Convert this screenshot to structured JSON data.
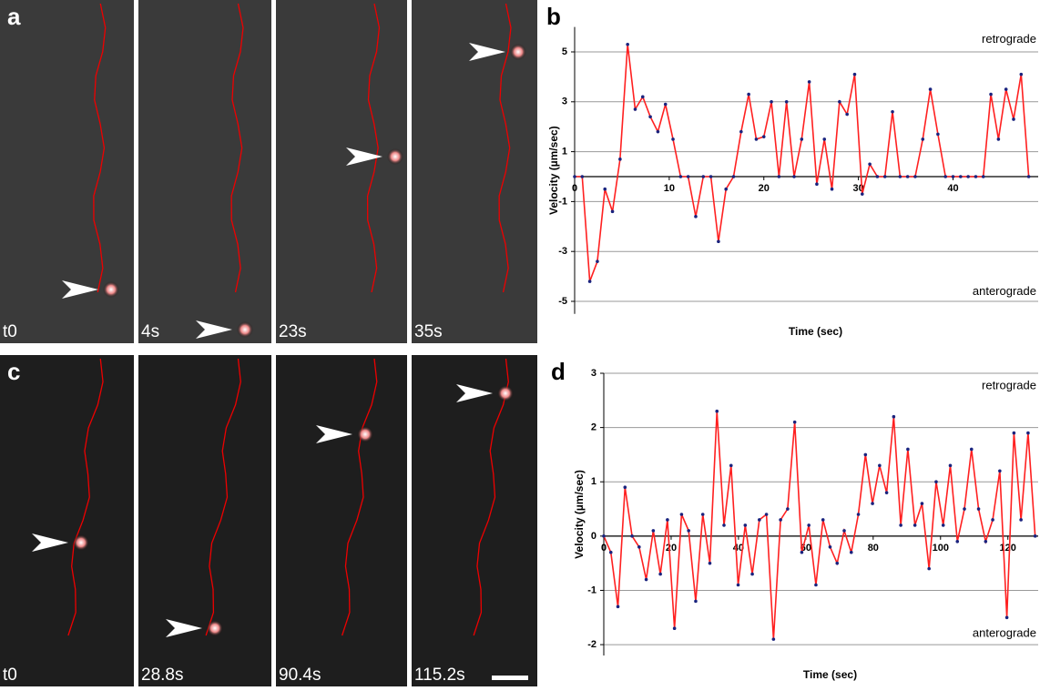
{
  "image_panels": [
    {
      "label": "a",
      "frames": [
        "t0",
        "4s",
        "23s",
        "35s"
      ]
    },
    {
      "label": "c",
      "frames": [
        "t0",
        "28.8s",
        "90.4s",
        "115.2s"
      ]
    }
  ],
  "chart_data": [
    {
      "type": "line",
      "label": "b",
      "xlabel": "Time (sec)",
      "ylabel": "Velocity (µm/sec)",
      "annotations": [
        "retrograde",
        "anterograde"
      ],
      "x": [
        0,
        0.8,
        1.6,
        2.4,
        3.2,
        4,
        4.8,
        5.6,
        6.4,
        7.2,
        8,
        8.8,
        9.6,
        10.4,
        11.2,
        12,
        12.8,
        13.6,
        14.4,
        15.2,
        16,
        16.8,
        17.6,
        18.4,
        19.2,
        20,
        20.8,
        21.6,
        22.4,
        23.2,
        24,
        24.8,
        25.6,
        26.4,
        27.2,
        28,
        28.8,
        29.6,
        30.4,
        31.2,
        32,
        32.8,
        33.6,
        34.4,
        35.2,
        36,
        36.8,
        37.6,
        38.4,
        39.2,
        40,
        40.8,
        41.6,
        42.4,
        43.2,
        44,
        44.8,
        45.6,
        46.4,
        47.2,
        48
      ],
      "series": [
        {
          "color": "#ff2020",
          "marker_color": "#1a237e",
          "values": [
            0,
            0,
            -4.2,
            -3.4,
            -0.5,
            -1.4,
            0.7,
            5.3,
            2.7,
            3.2,
            2.4,
            1.8,
            2.9,
            1.5,
            0,
            0,
            -1.6,
            0,
            0,
            -2.6,
            -0.5,
            0,
            1.8,
            3.3,
            1.5,
            1.6,
            3,
            0,
            3,
            0,
            1.5,
            3.8,
            -0.3,
            1.5,
            -0.5,
            3,
            2.5,
            4.1,
            -0.7,
            0.5,
            0,
            0,
            2.6,
            0,
            0,
            0,
            1.5,
            3.5,
            1.7,
            0,
            0,
            0,
            0,
            0,
            0,
            3.3,
            1.5,
            3.5,
            2.3,
            4.1,
            0
          ]
        }
      ],
      "xlim": [
        0,
        49
      ],
      "ylim": [
        -5.5,
        6
      ],
      "xticks": [
        0,
        10,
        20,
        30,
        40
      ],
      "yticks": [
        -5,
        -3,
        -1,
        1,
        3,
        5
      ],
      "grid": true
    },
    {
      "type": "line",
      "label": "d",
      "xlabel": "Time (sec)",
      "ylabel": "Velocity (µm/sec)",
      "annotations": [
        "retrograde",
        "anterograde"
      ],
      "x": [
        0,
        2.1,
        4.2,
        6.3,
        8.4,
        10.5,
        12.6,
        14.7,
        16.8,
        18.9,
        21,
        23.1,
        25.2,
        27.3,
        29.4,
        31.5,
        33.6,
        35.7,
        37.8,
        39.9,
        42,
        44.1,
        46.2,
        48.3,
        50.4,
        52.5,
        54.6,
        56.7,
        58.8,
        60.9,
        63,
        65.1,
        67.2,
        69.3,
        71.4,
        73.5,
        75.6,
        77.7,
        79.8,
        81.9,
        84,
        86.1,
        88.2,
        90.3,
        92.4,
        94.5,
        96.6,
        98.7,
        100.8,
        102.9,
        105,
        107.1,
        109.2,
        111.3,
        113.4,
        115.5,
        117.6,
        119.7,
        121.8,
        123.9,
        126,
        128.1
      ],
      "series": [
        {
          "color": "#ff2020",
          "marker_color": "#1a237e",
          "values": [
            0,
            -0.3,
            -1.3,
            0.9,
            0,
            -0.2,
            -0.8,
            0.1,
            -0.7,
            0.3,
            -1.7,
            0.4,
            0.1,
            -1.2,
            0.4,
            -0.5,
            2.3,
            0.2,
            1.3,
            -0.9,
            0.2,
            -0.7,
            0.3,
            0.4,
            -1.9,
            0.3,
            0.5,
            2.1,
            -0.3,
            0.2,
            -0.9,
            0.3,
            -0.2,
            -0.5,
            0.1,
            -0.3,
            0.4,
            1.5,
            0.6,
            1.3,
            0.8,
            2.2,
            0.2,
            1.6,
            0.2,
            0.6,
            -0.6,
            1,
            0.2,
            1.3,
            -0.1,
            0.5,
            1.6,
            0.5,
            -0.1,
            0.3,
            1.2,
            -1.5,
            1.9,
            0.3,
            1.9,
            0
          ]
        }
      ],
      "xlim": [
        0,
        129
      ],
      "ylim": [
        -2.2,
        3
      ],
      "xticks": [
        0,
        20,
        40,
        60,
        80,
        100,
        120
      ],
      "yticks": [
        -2,
        -1,
        0,
        1,
        2,
        3
      ],
      "grid": true
    }
  ]
}
